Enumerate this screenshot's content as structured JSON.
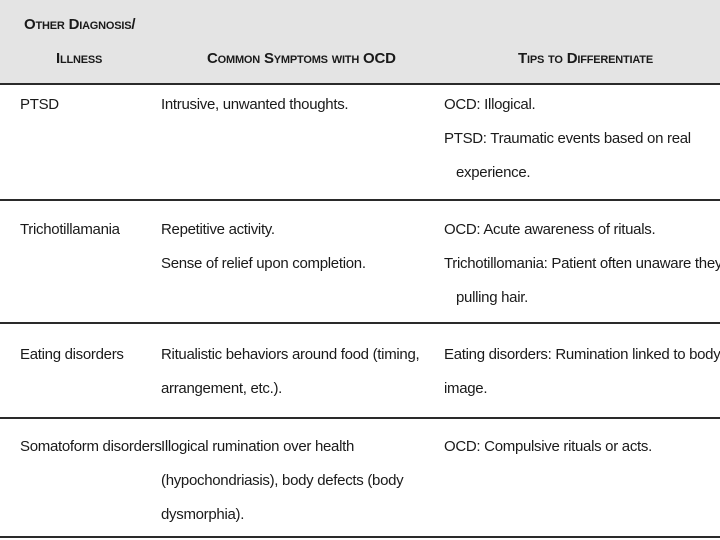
{
  "header": {
    "col1_line1": "Other Diagnosis/",
    "col1_line2": "Illness",
    "col2": "Common Symptoms with OCD",
    "col3": "Tips to Differentiate"
  },
  "rows": [
    {
      "diagnosis": "PTSD",
      "symptoms": [
        "Intrusive, unwanted thoughts."
      ],
      "tips": [
        "OCD: Illogical.",
        "PTSD: Traumatic events based on real",
        "experience."
      ]
    },
    {
      "diagnosis": "Trichotillamania",
      "symptoms": [
        "Repetitive activity.",
        "Sense of relief upon completion."
      ],
      "tips": [
        "OCD: Acute awareness of rituals.",
        "Trichotillomania: Patient often unaware they are",
        "pulling hair."
      ]
    },
    {
      "diagnosis": "Eating disorders",
      "symptoms": [
        "Ritualistic behaviors around food (timing,",
        "arrangement, etc.)."
      ],
      "tips": [
        "Eating disorders: Rumination linked to body",
        "image."
      ]
    },
    {
      "diagnosis": "Somatoform disorders",
      "symptoms": [
        "Illogical rumination over health",
        "(hypochondriasis), body defects (body",
        "dysmorphia)."
      ],
      "tips": [
        "OCD: Compulsive rituals or acts."
      ]
    }
  ]
}
